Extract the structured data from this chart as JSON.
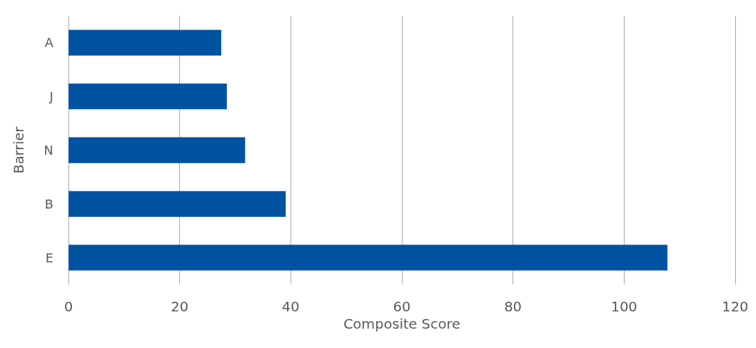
{
  "chart_data": {
    "type": "bar",
    "orientation": "horizontal",
    "xlabel": "Composite Score",
    "ylabel": "Barrier",
    "categories": [
      "A",
      "J",
      "N",
      "B",
      "E"
    ],
    "values": [
      27.5,
      28.5,
      31.8,
      39.1,
      107.8
    ],
    "color": "#0053a0",
    "xlim": [
      0,
      120
    ],
    "xticks": [
      0,
      20,
      40,
      60,
      80,
      100,
      120
    ],
    "grid": "x"
  }
}
